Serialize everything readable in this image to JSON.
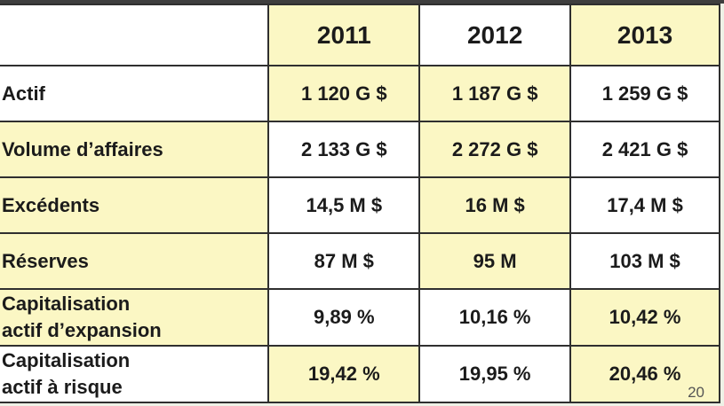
{
  "years": [
    "2011",
    "2012",
    "2013"
  ],
  "rows": [
    {
      "label": [
        "Actif"
      ],
      "values": [
        "1 120 G $",
        "1 187 G $",
        "1 259 G $"
      ]
    },
    {
      "label": [
        "Volume d’affaires"
      ],
      "values": [
        "2 133 G $",
        "2 272 G $",
        "2 421 G $"
      ]
    },
    {
      "label": [
        "Excédents"
      ],
      "values": [
        "14,5 M $",
        "16 M $",
        "17,4 M $"
      ]
    },
    {
      "label": [
        "Réserves"
      ],
      "values": [
        "87 M $",
        "95 M",
        "103 M $"
      ]
    },
    {
      "label": [
        "Capitalisation",
        "actif d’expansion"
      ],
      "values": [
        "9,89 %",
        "10,16 %",
        "10,42 %"
      ]
    },
    {
      "label": [
        "Capitalisation",
        "actif à risque"
      ],
      "values": [
        "19,42 %",
        "19,95 %",
        "20,46 %"
      ]
    }
  ],
  "slide_number": "20",
  "colors": {
    "highlight": "#fbf7c4",
    "plain": "#ffffff",
    "border": "#2f2f2f"
  }
}
